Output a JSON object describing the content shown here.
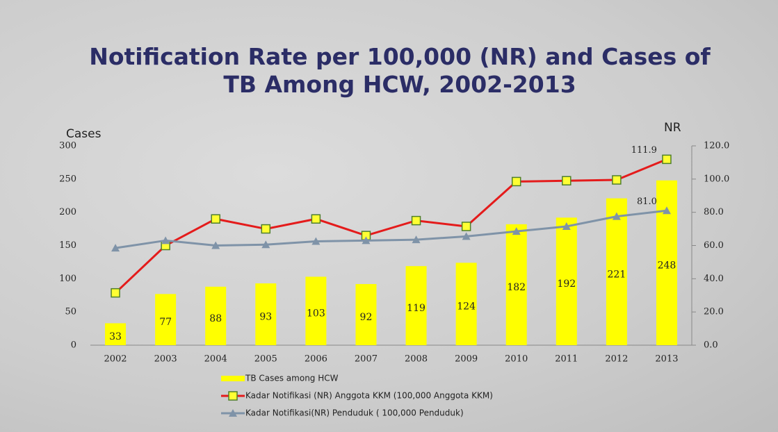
{
  "chart_data": {
    "type": "combo",
    "title": "Notification Rate per 100,000 (NR) and Cases of TB Among HCW, 2002-2013",
    "y_label": "Cases",
    "y2_label": "NR",
    "categories": [
      "2002",
      "2003",
      "2004",
      "2005",
      "2006",
      "2007",
      "2008",
      "2009",
      "2010",
      "2011",
      "2012",
      "2013"
    ],
    "ylim": [
      0,
      300
    ],
    "yticks": [
      0,
      50,
      100,
      150,
      200,
      250,
      300
    ],
    "y2lim": [
      0,
      120
    ],
    "y2ticks": [
      {
        "value": 0,
        "label": "0.0"
      },
      {
        "value": 20,
        "label": "20.0"
      },
      {
        "value": 40,
        "label": "40.0"
      },
      {
        "value": 60,
        "label": "60.0"
      },
      {
        "value": 80,
        "label": "80.0"
      },
      {
        "value": 100,
        "label": "100.0"
      },
      {
        "value": 120,
        "label": "120.0"
      }
    ],
    "series": [
      {
        "name": "TB Cases among HCW",
        "type": "bar",
        "color": "#ffff00",
        "show_values": true,
        "values": [
          33,
          77,
          88,
          93,
          103,
          92,
          119,
          124,
          182,
          192,
          221,
          248
        ]
      },
      {
        "name": "Kadar Notifikasi (NR) Anggota KKM (100,000 Anggota KKM)",
        "type": "line",
        "axis": "y2",
        "color": "#e41b1b",
        "marker": "square",
        "values": [
          31.5,
          60,
          76,
          70,
          76,
          66,
          75,
          71.5,
          98.5,
          99,
          99.5,
          111.9
        ],
        "value_labels": [
          null,
          null,
          null,
          null,
          null,
          null,
          null,
          null,
          null,
          null,
          null,
          "111.9"
        ]
      },
      {
        "name": "Kadar Notifikasi(NR)  Penduduk ( 100,000 Penduduk)",
        "type": "line",
        "axis": "y2",
        "color": "#7f93a8",
        "marker": "triangle",
        "values": [
          58.5,
          63,
          60,
          60.5,
          62.5,
          63,
          63.5,
          65.5,
          68.5,
          71.5,
          77.5,
          81.0
        ],
        "value_labels": [
          null,
          null,
          null,
          null,
          null,
          null,
          null,
          null,
          null,
          null,
          null,
          "81.0"
        ]
      }
    ]
  }
}
